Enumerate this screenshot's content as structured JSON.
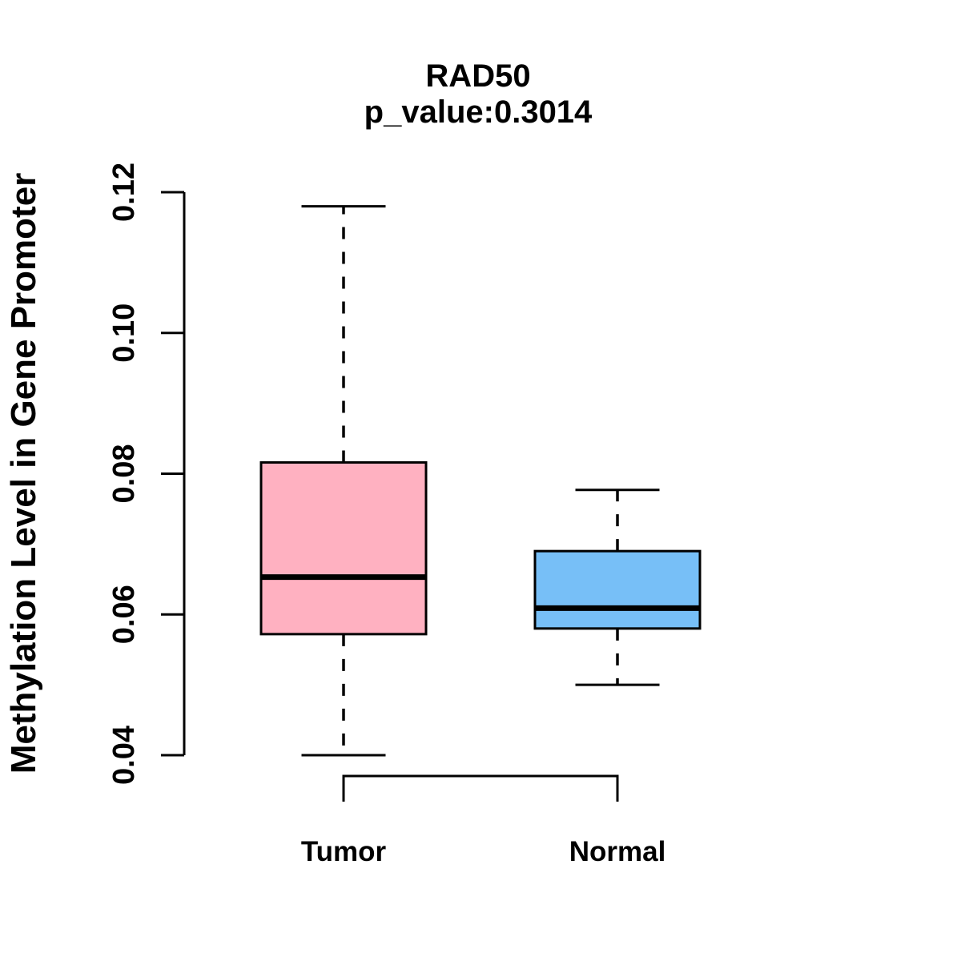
{
  "chart_data": {
    "type": "boxplot",
    "title": "RAD50",
    "subtitle": "p_value:0.3014",
    "ylabel": "Methylation Level in Gene Promoter",
    "xlabel": "",
    "ylim": [
      0.04,
      0.12
    ],
    "yticks": [
      0.04,
      0.06,
      0.08,
      0.1,
      0.12
    ],
    "ytick_labels": [
      "0.04",
      "0.06",
      "0.08",
      "0.10",
      "0.12"
    ],
    "grid": false,
    "legend": "none",
    "orientation": "vertical",
    "groups": [
      {
        "label": "Tumor",
        "fill_color": "#FFB1C1",
        "stroke_color": "#000000",
        "min": 0.04,
        "q1": 0.0572,
        "median": 0.0653,
        "q3": 0.0816,
        "max": 0.118
      },
      {
        "label": "Normal",
        "fill_color": "#77BFF7",
        "stroke_color": "#000000",
        "min": 0.05,
        "q1": 0.058,
        "median": 0.0609,
        "q3": 0.069,
        "max": 0.0777
      }
    ]
  }
}
